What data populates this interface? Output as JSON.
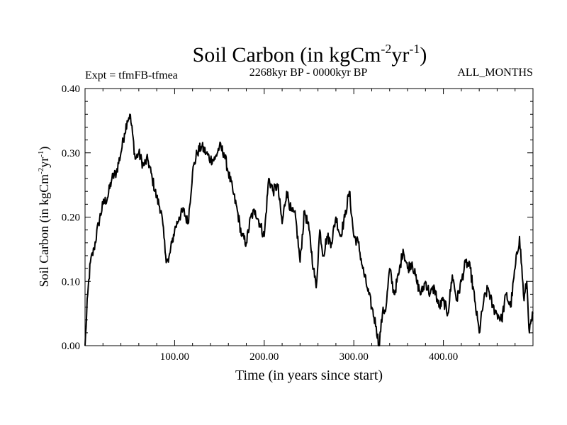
{
  "chart_data": {
    "type": "line",
    "title_main": "Soil Carbon (in kgCm",
    "title_exp1": "-2",
    "title_mid": "yr",
    "title_exp2": "-1",
    "title_close": ")",
    "subtitle_left": "Expt = tfmFB-tfmea",
    "subtitle_center": "2268kyr BP - 0000kyr BP",
    "subtitle_right": "ALL_MONTHS",
    "xlabel": "Time (in years since start)",
    "ylabel": "Soil Carbon (in kgCm-2yr-1)",
    "xlim": [
      0,
      500
    ],
    "ylim": [
      0,
      0.4
    ],
    "x_ticks": [
      100,
      200,
      300,
      400
    ],
    "x_tick_labels": [
      "100.00",
      "200.00",
      "300.00",
      "400.00"
    ],
    "y_ticks": [
      0,
      0.1,
      0.2,
      0.3,
      0.4
    ],
    "y_tick_labels": [
      "0.00",
      "0.10",
      "0.20",
      "0.30",
      "0.40"
    ],
    "series": [
      {
        "name": "Soil Carbon",
        "color": "#000000",
        "x": [
          0,
          3,
          6,
          10,
          15,
          20,
          25,
          30,
          35,
          40,
          44,
          47,
          50,
          53,
          56,
          60,
          65,
          70,
          75,
          80,
          85,
          90,
          93,
          97,
          100,
          105,
          110,
          115,
          120,
          125,
          130,
          135,
          140,
          145,
          150,
          155,
          160,
          165,
          170,
          175,
          180,
          185,
          190,
          195,
          200,
          205,
          210,
          215,
          220,
          225,
          230,
          235,
          240,
          245,
          250,
          255,
          258,
          262,
          266,
          270,
          275,
          280,
          285,
          290,
          295,
          300,
          305,
          310,
          315,
          320,
          325,
          328,
          332,
          336,
          340,
          345,
          350,
          355,
          360,
          365,
          370,
          375,
          380,
          385,
          390,
          395,
          400,
          405,
          410,
          415,
          420,
          425,
          430,
          435,
          440,
          445,
          450,
          455,
          460,
          465,
          470,
          475,
          480,
          485,
          490,
          493,
          496,
          500
        ],
        "values": [
          0.0,
          0.08,
          0.13,
          0.15,
          0.19,
          0.22,
          0.23,
          0.26,
          0.27,
          0.3,
          0.33,
          0.35,
          0.36,
          0.33,
          0.29,
          0.3,
          0.28,
          0.29,
          0.26,
          0.23,
          0.21,
          0.14,
          0.13,
          0.16,
          0.18,
          0.2,
          0.21,
          0.19,
          0.27,
          0.3,
          0.31,
          0.3,
          0.29,
          0.29,
          0.31,
          0.3,
          0.27,
          0.24,
          0.21,
          0.17,
          0.16,
          0.2,
          0.21,
          0.19,
          0.17,
          0.26,
          0.24,
          0.25,
          0.19,
          0.24,
          0.21,
          0.2,
          0.13,
          0.21,
          0.18,
          0.12,
          0.09,
          0.18,
          0.14,
          0.17,
          0.16,
          0.2,
          0.17,
          0.2,
          0.24,
          0.17,
          0.16,
          0.12,
          0.09,
          0.06,
          0.03,
          0.0,
          0.05,
          0.06,
          0.12,
          0.08,
          0.11,
          0.15,
          0.12,
          0.13,
          0.1,
          0.08,
          0.1,
          0.08,
          0.09,
          0.06,
          0.07,
          0.05,
          0.11,
          0.07,
          0.1,
          0.13,
          0.12,
          0.07,
          0.02,
          0.07,
          0.09,
          0.06,
          0.05,
          0.04,
          0.08,
          0.06,
          0.12,
          0.17,
          0.07,
          0.1,
          0.02,
          0.05
        ]
      }
    ]
  }
}
